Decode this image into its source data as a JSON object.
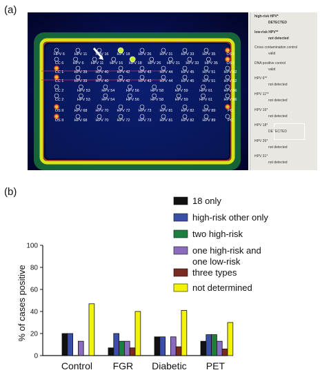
{
  "panels": {
    "a": "(a)",
    "b": "(b)"
  },
  "array": {
    "arrow_icon": "arrow-icon",
    "rows": [
      [
        "HPV 6",
        "HPV 11",
        "HPV 16",
        "HPV 18",
        "HPV 26",
        "HPV 31",
        "HPV 33",
        "HPV 35",
        "OS I"
      ],
      [
        "CC 6",
        "HPV 6",
        "HPV 11",
        "HPV 16",
        "HPV 18",
        "HPV 26",
        "HPV 31",
        "HPV 33",
        "HPV 35",
        "OS I"
      ],
      [
        "CC 1",
        "HPV 39",
        "HPV 40",
        "HPV 42",
        "HPV 43",
        "HPV 44",
        "HPV 45",
        "HPV 51",
        "HPV 52"
      ],
      [
        "CC 1",
        "HPV 39",
        "HPV 40",
        "HPV 42",
        "HPV 43",
        "HPV 44",
        "HPV 45",
        "HPV 51",
        "HPV 52"
      ],
      [
        "CC 2",
        "HPV 53",
        "HPV 54",
        "HPV 56",
        "HPV 58",
        "HPV 59",
        "HPV 61",
        "HPV 66"
      ],
      [
        "CC 2",
        "HPV 53",
        "HPV 54",
        "HPV 56",
        "HPV 58",
        "HPV 59",
        "HPV 61",
        "HPV 66"
      ],
      [
        "OS II",
        "HPV 68",
        "HPV 70",
        "HPV 72",
        "HPV 73",
        "HPV 81",
        "HPV 82",
        "HPV 89",
        "PC"
      ],
      [
        "OS II",
        "HPV 68",
        "HPV 70",
        "HPV 72",
        "HPV 73",
        "HPV 81",
        "HPV 82",
        "HPV 89",
        "PC"
      ]
    ]
  },
  "results": [
    {
      "label": "high-risk HPV*",
      "value": "DETECTED",
      "bold": true
    },
    {
      "label": "low-risk HPV**",
      "value": "not detected",
      "bold": true
    },
    {
      "label": "Cross contamination control",
      "value": "valid"
    },
    {
      "label": "DNA positive control",
      "value": "valid"
    },
    {
      "label": "HPV 6**",
      "value": "not detected"
    },
    {
      "label": "HPV 11**",
      "value": "not detected"
    },
    {
      "label": "HPV 16*",
      "value": "not detected"
    },
    {
      "label": "HPV 18*",
      "value": "DETECTED"
    },
    {
      "label": "HPV 26*",
      "value": "not detected"
    },
    {
      "label": "HPV 31*",
      "value": "not detected"
    }
  ],
  "chart_data": {
    "type": "bar",
    "ylabel": "% of cases positive",
    "ylim": [
      0,
      100
    ],
    "yticks": [
      "0",
      "20",
      "40",
      "60",
      "80",
      "100"
    ],
    "categories": [
      "Control",
      "FGR",
      "Diabetic",
      "PET"
    ],
    "grid": false,
    "legend_position": "top-right",
    "series": [
      {
        "name": "18 only",
        "color": "#111111",
        "values": [
          20,
          7,
          17,
          13
        ]
      },
      {
        "name": "high-risk other only",
        "color": "#3a4fa8",
        "values": [
          20,
          20,
          17,
          19
        ]
      },
      {
        "name": "two high-risk",
        "color": "#1c7f3d",
        "values": [
          0,
          13,
          0,
          19
        ]
      },
      {
        "name": "one high-risk and one low-risk",
        "color": "#8a6bbf",
        "values": [
          13,
          13,
          17,
          13
        ]
      },
      {
        "name": "three types",
        "color": "#7a2a1e",
        "values": [
          0,
          7,
          8,
          6
        ]
      },
      {
        "name": "not determined",
        "color": "#f2f20a",
        "values": [
          47,
          40,
          41,
          30
        ]
      }
    ]
  }
}
